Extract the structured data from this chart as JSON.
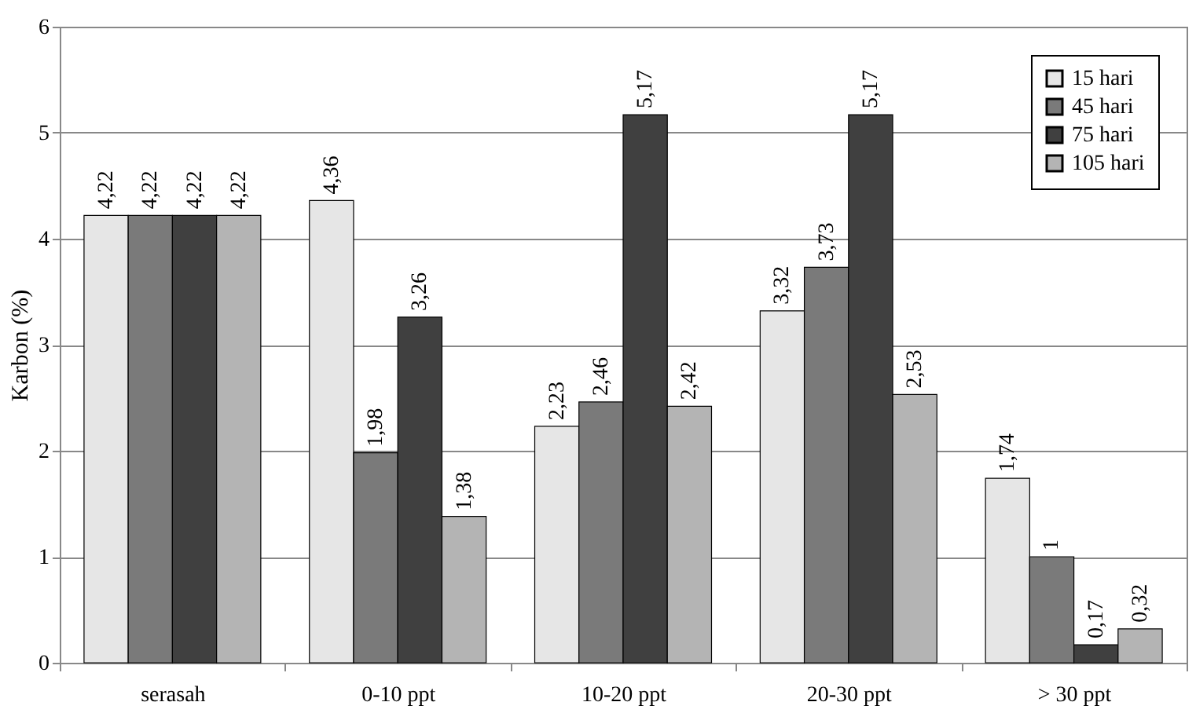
{
  "chart_data": {
    "type": "bar",
    "ylabel": "Karbon (%)",
    "categories": [
      "serasah",
      "0-10 ppt",
      "10-20 ppt",
      "20-30 ppt",
      "> 30 ppt"
    ],
    "series": [
      {
        "name": "15 hari",
        "color": "#e6e6e6",
        "values": [
          4.22,
          4.36,
          2.23,
          3.32,
          1.74
        ],
        "value_labels": [
          "4,22",
          "4,36",
          "2,23",
          "3,32",
          "1,74"
        ]
      },
      {
        "name": "45 hari",
        "color": "#7a7a7a",
        "values": [
          4.22,
          1.98,
          2.46,
          3.73,
          1
        ],
        "value_labels": [
          "4,22",
          "1,98",
          "2,46",
          "3,73",
          "1"
        ]
      },
      {
        "name": "75 hari",
        "color": "#404040",
        "values": [
          4.22,
          3.26,
          5.17,
          5.17,
          0.17
        ],
        "value_labels": [
          "4,22",
          "3,26",
          "5,17",
          "5,17",
          "0,17"
        ]
      },
      {
        "name": "105 hari",
        "color": "#b4b4b4",
        "values": [
          4.22,
          1.38,
          2.42,
          2.53,
          0.32
        ],
        "value_labels": [
          "4,22",
          "1,38",
          "2,42",
          "2,53",
          "0,32"
        ]
      }
    ],
    "ylim": [
      0,
      6
    ],
    "yticks": [
      0,
      1,
      2,
      3,
      4,
      5,
      6
    ],
    "grid": "y",
    "legend": "top right"
  }
}
